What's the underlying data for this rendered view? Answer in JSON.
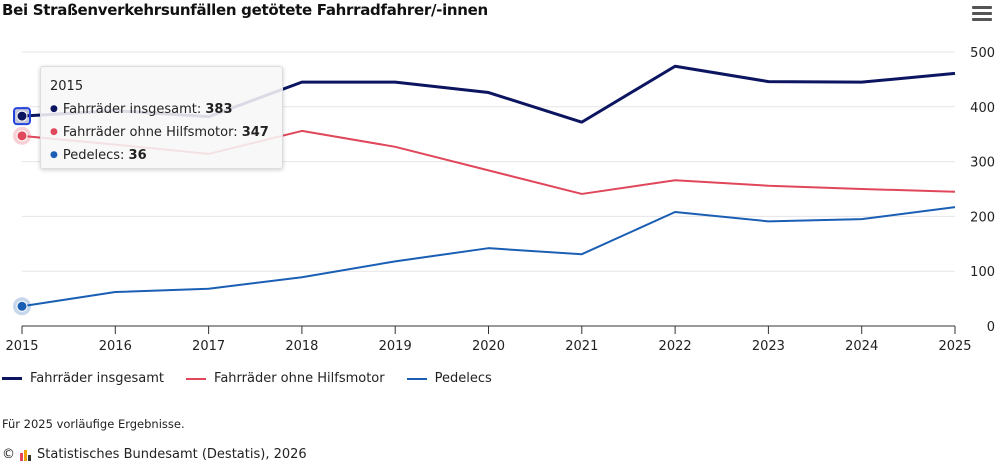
{
  "title": "Bei Straßenverkehrsunfällen getötete Fahrradfahrer/-innen",
  "menu_icon": "hamburger-menu-icon",
  "note": "Für 2025 vorläufige Ergebnisse.",
  "credit": "Statistisches Bundesamt (Destatis), 2026",
  "credit_symbol": "©",
  "tooltip": {
    "year": "2015",
    "rows": [
      {
        "label": "Fahrräder insgesamt: ",
        "value": "383"
      },
      {
        "label": "Fahrräder ohne Hilfsmotor: ",
        "value": "347"
      },
      {
        "label": "Pedelecs: ",
        "value": "36"
      }
    ]
  },
  "chart_data": {
    "type": "line",
    "title": "Bei Straßenverkehrsunfällen getötete Fahrradfahrer/-innen",
    "x": [
      "2015",
      "2016",
      "2017",
      "2018",
      "2019",
      "2020",
      "2021",
      "2022",
      "2023",
      "2024",
      "2025"
    ],
    "ylim": [
      0,
      500
    ],
    "yticks": [
      "0",
      "100",
      "200",
      "300",
      "400",
      "500"
    ],
    "y_axis_side": "right",
    "grid": true,
    "legend": "bottom-left",
    "series": [
      {
        "name": "Fahrräder insgesamt",
        "color": "#0b1560",
        "values": [
          383,
          393,
          382,
          445,
          445,
          426,
          372,
          474,
          446,
          445,
          461
        ]
      },
      {
        "name": "Fahrräder ohne Hilfsmotor",
        "color": "#e0475a",
        "values": [
          347,
          331,
          314,
          356,
          327,
          284,
          241,
          266,
          256,
          250,
          245
        ]
      },
      {
        "name": "Pedelecs",
        "color": "#1a5fb4",
        "values": [
          36,
          62,
          68,
          89,
          118,
          142,
          131,
          208,
          191,
          195,
          217
        ]
      }
    ]
  }
}
